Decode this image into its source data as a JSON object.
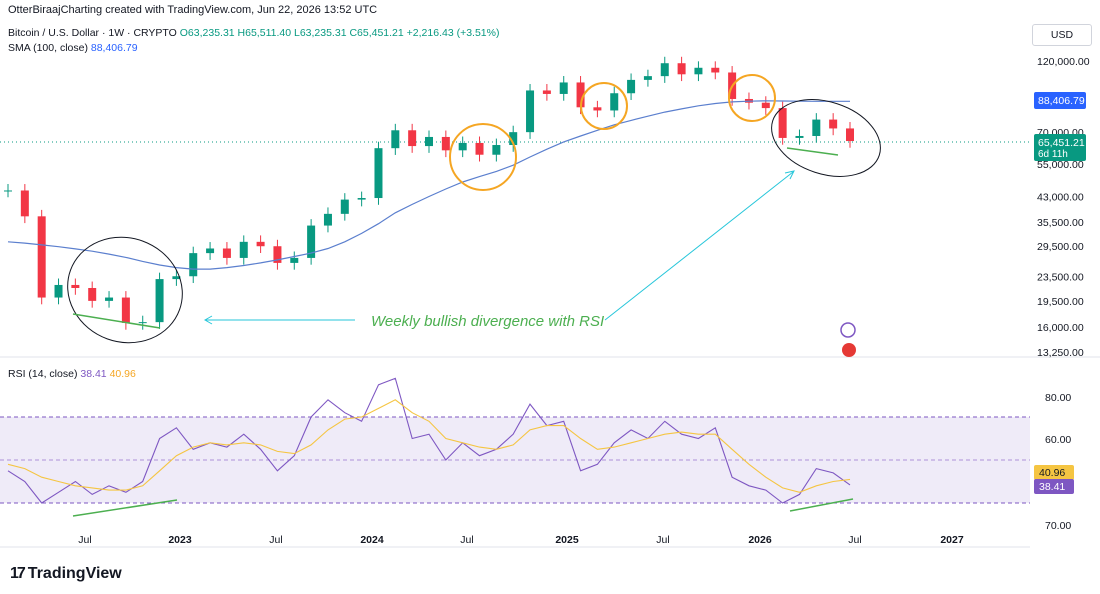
{
  "header": {
    "attribution": "OtterBiraajCharting created with TradingView.com, Jun 22, 2026 13:52 UTC",
    "symbol": "Bitcoin / U.S. Dollar · 1W · CRYPTO",
    "ohlc": "O63,235.31 H65,511.40 L63,235.31 C65,451.21 +2,216.43 (+3.51%)",
    "sma_label": "SMA (100, close)",
    "sma_value": "88,406.79",
    "currency": "USD",
    "rsi_label": "RSI (14, close)",
    "rsi_value": "38.41",
    "rsi_ma_value": "40.96",
    "price_badge": "65,451.21",
    "countdown": "6d 11h",
    "sma_badge": "88,406.79",
    "brand": "TradingView",
    "annotation": "Weekly bullish divergence with RSI"
  },
  "chart_data": [
    {
      "type": "line",
      "title": "Bitcoin / U.S. Dollar · 1W · CRYPTO",
      "y_scale": "log",
      "price_ticks": [
        "120,000.00",
        "70,000.00",
        "55,000.00",
        "43,000.00",
        "35,500.00",
        "29,500.00",
        "23,500.00",
        "19,500.00",
        "16,000.00",
        "13,250.00"
      ],
      "x_ticks": [
        "Jul",
        "2023",
        "Jul",
        "2024",
        "Jul",
        "2025",
        "Jul",
        "2026",
        "Jul",
        "2027"
      ],
      "x": [
        "2022-04",
        "2022-05",
        "2022-06",
        "2022-07",
        "2022-08",
        "2022-09",
        "2022-10",
        "2022-11",
        "2022-12",
        "2023-01",
        "2023-02",
        "2023-03",
        "2023-04",
        "2023-05",
        "2023-06",
        "2023-07",
        "2023-08",
        "2023-09",
        "2023-10",
        "2023-11",
        "2023-12",
        "2024-01",
        "2024-02",
        "2024-03",
        "2024-04",
        "2024-05",
        "2024-06",
        "2024-07",
        "2024-08",
        "2024-09",
        "2024-10",
        "2024-11",
        "2024-12",
        "2025-01",
        "2025-02",
        "2025-03",
        "2025-04",
        "2025-05",
        "2025-06",
        "2025-07",
        "2025-08",
        "2025-09",
        "2025-10",
        "2025-11",
        "2025-12",
        "2026-01",
        "2026-02",
        "2026-03",
        "2026-04",
        "2026-05",
        "2026-06"
      ],
      "series": [
        {
          "name": "SMA (100, close)",
          "values": [
            30500,
            30200,
            29800,
            29400,
            28900,
            28400,
            27800,
            27100,
            26300,
            25600,
            25100,
            24800,
            24800,
            25100,
            25500,
            26000,
            26600,
            27300,
            28000,
            29000,
            30500,
            32500,
            35000,
            38000,
            40500,
            43000,
            45500,
            48000,
            50000,
            52000,
            54500,
            58000,
            61500,
            65000,
            68000,
            71000,
            74000,
            76500,
            79000,
            81500,
            83500,
            85500,
            87000,
            88000,
            88500,
            88800,
            88600,
            88500,
            88400,
            88406.79,
            88406.79
          ]
        }
      ],
      "candles_close": [
        45000,
        37000,
        20000,
        22000,
        21500,
        19500,
        20000,
        16500,
        16600,
        23000,
        23500,
        28000,
        29000,
        27000,
        30500,
        29500,
        26000,
        27000,
        34500,
        37700,
        42000,
        42500,
        62000,
        71000,
        63000,
        67500,
        61000,
        64500,
        59000,
        63500,
        70000,
        96000,
        93500,
        102000,
        84500,
        82500,
        94000,
        104000,
        107000,
        118000,
        108500,
        114000,
        110000,
        90000,
        87500,
        84000,
        67000,
        68000,
        77000,
        72000,
        65451.21
      ],
      "annotations": [
        "Weekly bullish divergence with RSI"
      ]
    },
    {
      "type": "line",
      "title": "RSI (14, close)",
      "rsi_ticks": [
        "80.00",
        "60.00",
        "70.00"
      ],
      "series": [
        {
          "name": "RSI (14, close)",
          "values": [
            45,
            40,
            30,
            35,
            40,
            34,
            38,
            35,
            40,
            60,
            65,
            55,
            58,
            56,
            62,
            55,
            45,
            52,
            70,
            78,
            72,
            68,
            85,
            88,
            60,
            62,
            50,
            58,
            52,
            55,
            62,
            76,
            66,
            68,
            45,
            48,
            58,
            64,
            60,
            68,
            62,
            60,
            65,
            42,
            38,
            36,
            30,
            34,
            46,
            44,
            38.41
          ]
        },
        {
          "name": "RSI MA",
          "values": [
            48,
            46,
            42,
            40,
            38,
            37,
            36,
            36,
            38,
            45,
            52,
            56,
            58,
            57,
            58,
            57,
            54,
            53,
            57,
            64,
            69,
            70,
            74,
            78,
            72,
            68,
            60,
            58,
            56,
            55,
            57,
            64,
            66,
            66,
            60,
            55,
            56,
            58,
            60,
            62,
            63,
            62,
            62,
            55,
            48,
            42,
            37,
            35,
            38,
            40,
            40.96
          ]
        }
      ]
    }
  ]
}
